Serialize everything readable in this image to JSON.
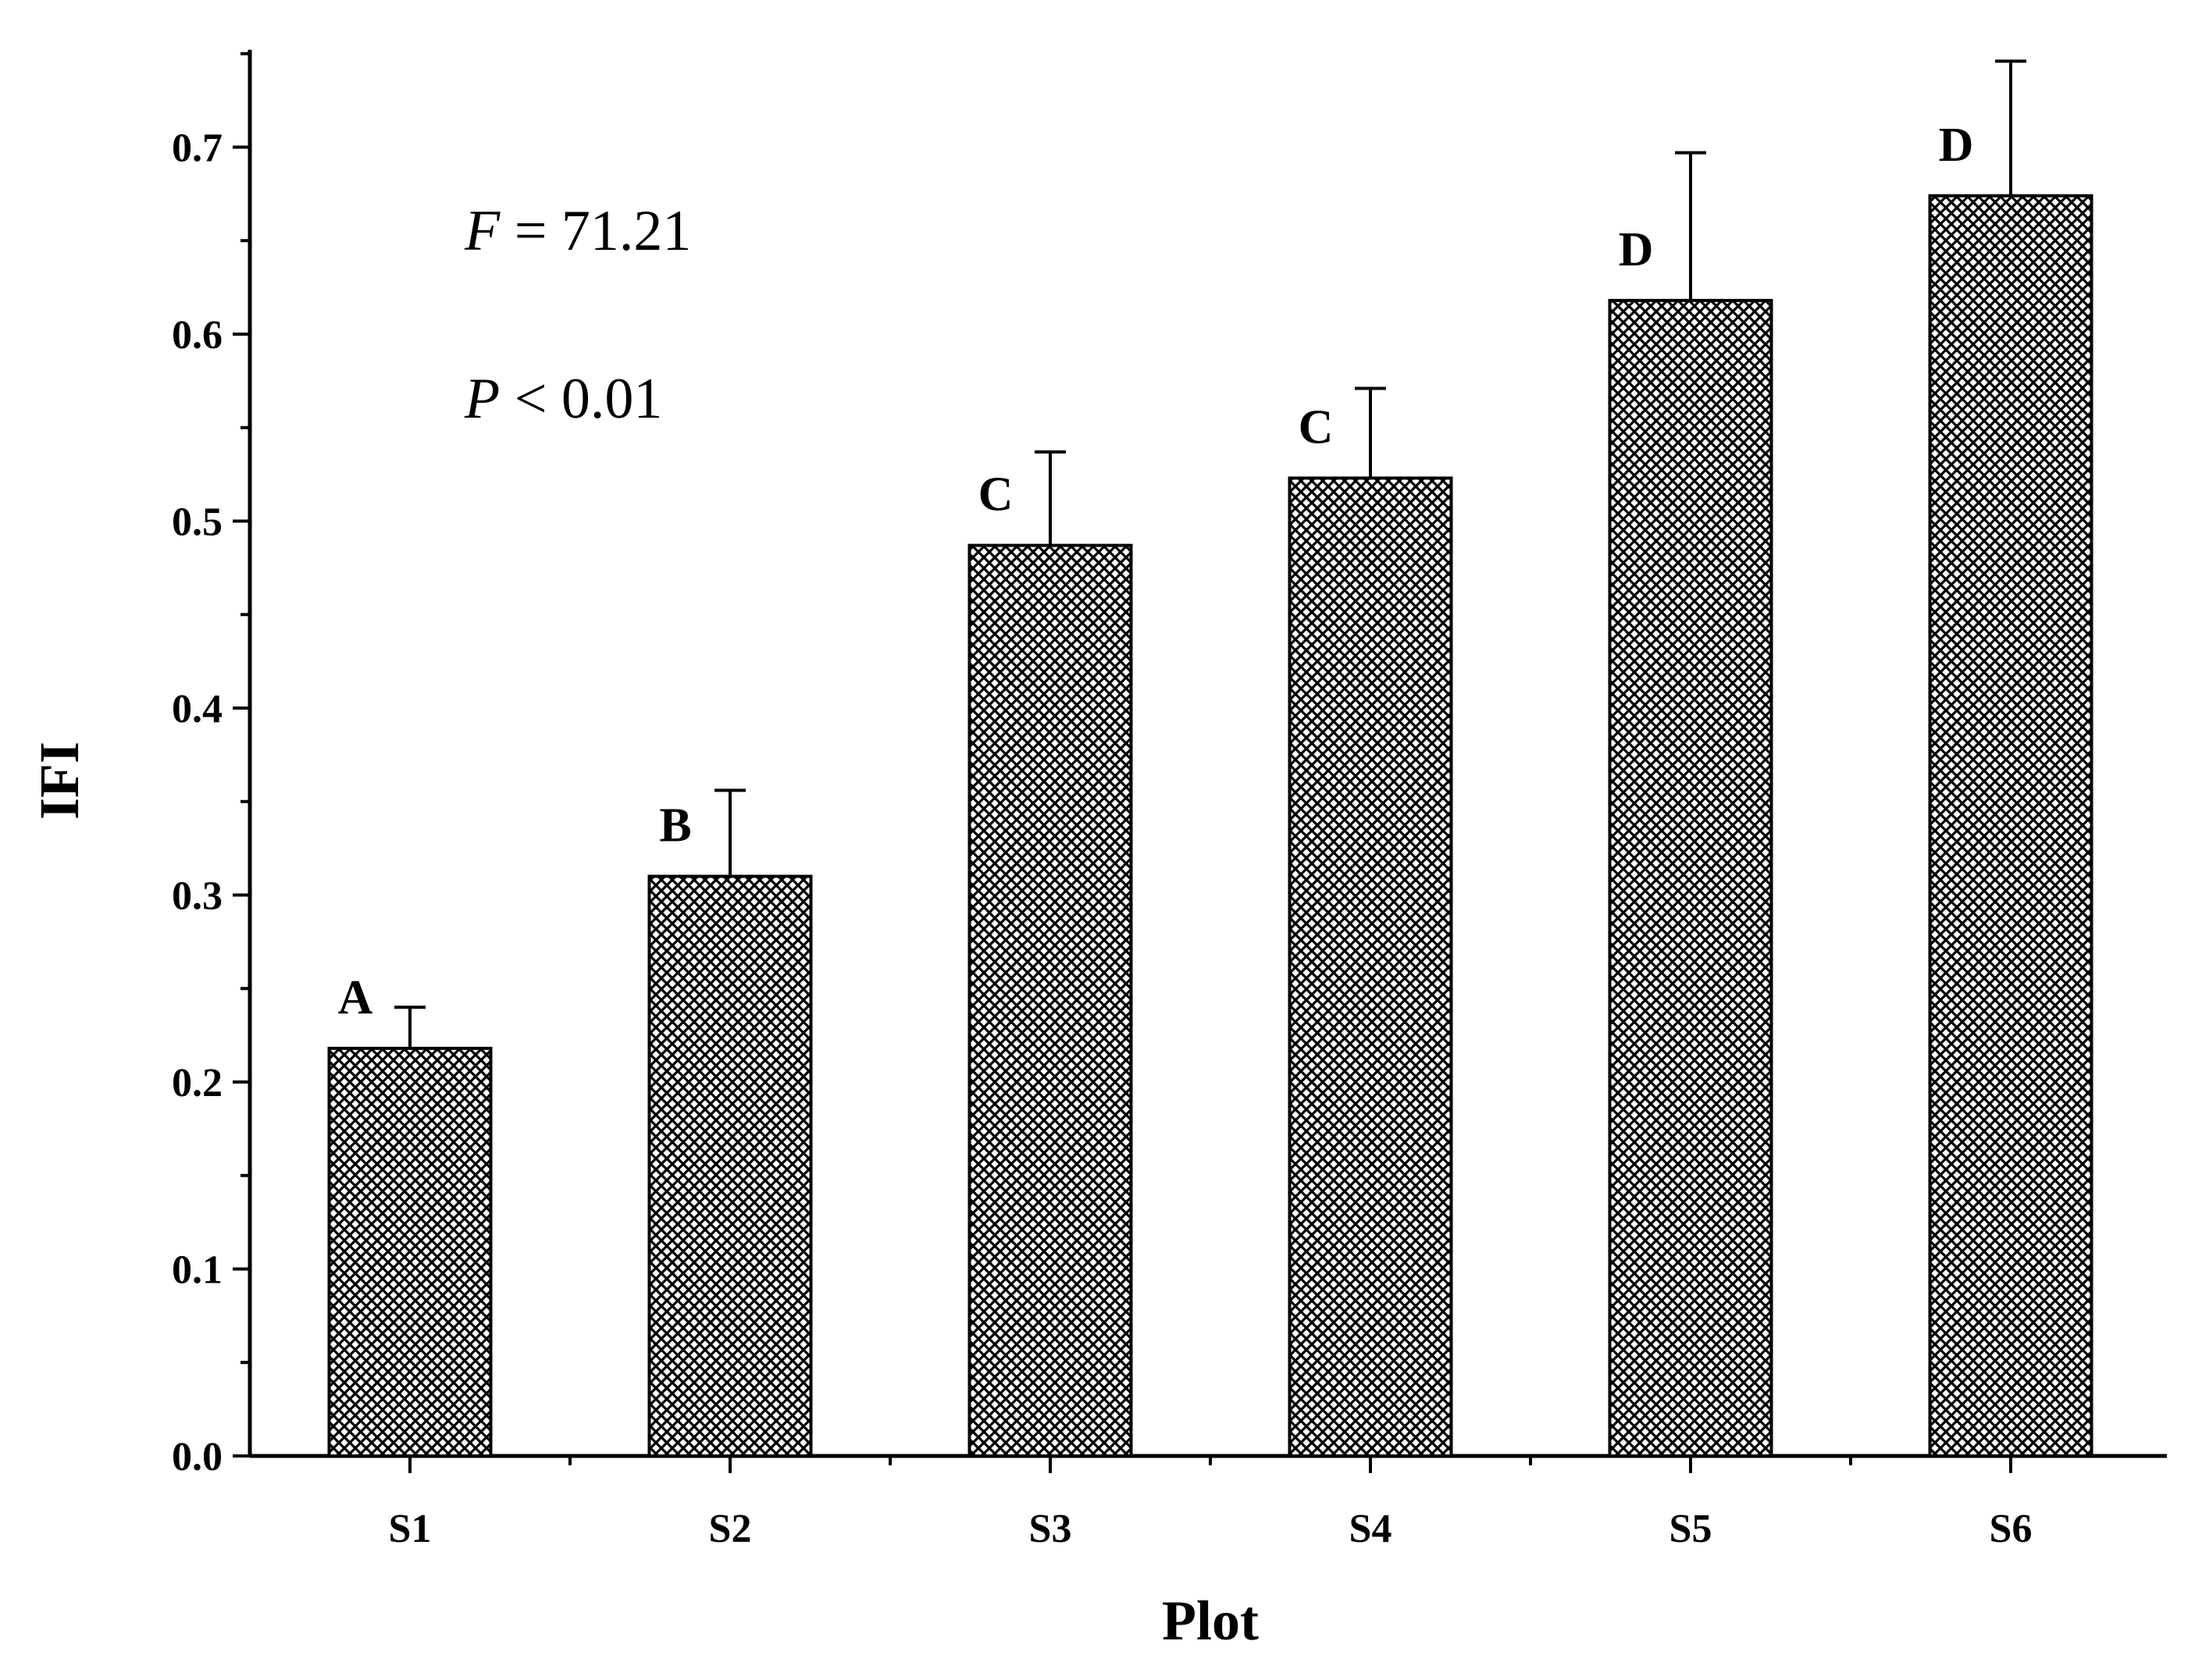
{
  "chart_data": {
    "type": "bar",
    "title": "",
    "xlabel": "Plot",
    "ylabel": "IFI",
    "categories": [
      "S1",
      "S2",
      "S3",
      "S4",
      "S5",
      "S6"
    ],
    "values": [
      0.218,
      0.31,
      0.487,
      0.523,
      0.618,
      0.674
    ],
    "error_plus": [
      0.022,
      0.046,
      0.05,
      0.048,
      0.079,
      0.072
    ],
    "significance_letters": [
      "A",
      "B",
      "C",
      "C",
      "D",
      "D"
    ],
    "ylim": [
      0.0,
      0.75
    ],
    "yticks": [
      "0.0",
      "0.1",
      "0.2",
      "0.3",
      "0.4",
      "0.5",
      "0.6",
      "0.7"
    ],
    "ytick_values": [
      0.0,
      0.1,
      0.2,
      0.3,
      0.4,
      0.5,
      0.6,
      0.7
    ],
    "grid": false,
    "bar_fill": "crosshatch",
    "bar_color": "#000000",
    "stats": {
      "f_symbol": "F",
      "f_rest": " = 71.21",
      "p_symbol": "P",
      "p_rest": " < 0.01"
    }
  }
}
